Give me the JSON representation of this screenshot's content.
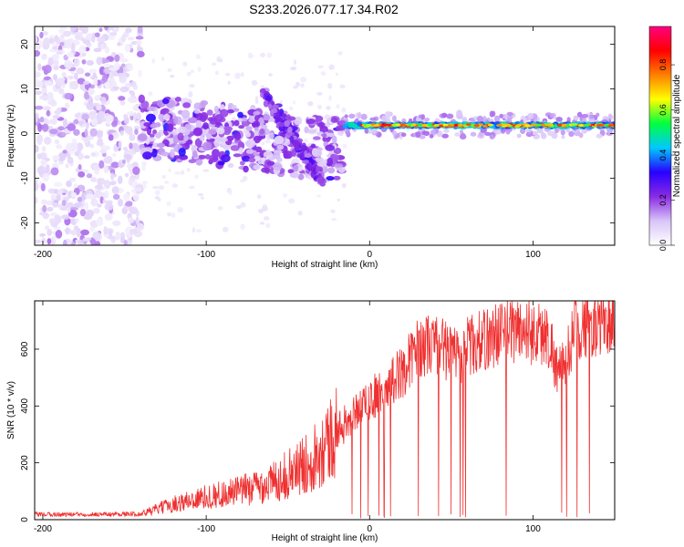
{
  "title": "S233.2026.077.17.34.R02",
  "chart_data": [
    {
      "type": "heatmap",
      "title": "S233.2026.077.17.34.R02",
      "xlabel": "Height of straight line (km)",
      "ylabel": "Frequency (Hz)",
      "xlim": [
        -205,
        150
      ],
      "ylim": [
        -25,
        24
      ],
      "xticks": [
        -200,
        -100,
        0,
        100
      ],
      "yticks": [
        -20,
        -10,
        0,
        10,
        20
      ],
      "colorbar": {
        "label": "Normalized spectral amplitude",
        "range": [
          0.0,
          0.97
        ],
        "ticks": [
          0.0,
          0.2,
          0.4,
          0.6,
          0.8
        ],
        "colormap": [
          "#ffffff",
          "#d8c4f8",
          "#8a2be2",
          "#2800ff",
          "#00c8ff",
          "#00ff40",
          "#ffff00",
          "#ff8000",
          "#ff0000",
          "#ff0080"
        ]
      },
      "features": [
        {
          "name": "noise-region",
          "x": [
            -205,
            -140
          ],
          "y": [
            -25,
            24
          ],
          "amplitude": 0.1
        },
        {
          "name": "scattered-signal",
          "x": [
            -140,
            -15
          ],
          "y_center_start": 2,
          "y_center_end": -4,
          "amplitude": 0.25
        },
        {
          "name": "diagonal-branch",
          "x": [
            -65,
            -30
          ],
          "y": [
            9,
            -10
          ],
          "amplitude": 0.2
        },
        {
          "name": "carrier-line",
          "x": [
            -15,
            150
          ],
          "y": [
            1.5,
            2.2
          ],
          "amplitude": 0.85
        }
      ]
    },
    {
      "type": "line",
      "xlabel": "Height of straight line (km)",
      "ylabel": "SNR (10 * v/v)",
      "xlim": [
        -205,
        150
      ],
      "ylim": [
        0,
        770
      ],
      "xticks": [
        -200,
        -100,
        0,
        100
      ],
      "yticks": [
        0,
        200,
        400,
        600
      ],
      "line_color": "#f03030",
      "trend": {
        "x": [
          -205,
          -140,
          -120,
          -100,
          -80,
          -60,
          -40,
          -25,
          -10,
          0,
          10,
          20,
          30,
          40,
          55,
          60,
          70,
          80,
          90,
          100,
          110,
          115,
          120,
          125,
          135,
          150
        ],
        "y": [
          18,
          20,
          55,
          80,
          100,
          130,
          190,
          280,
          370,
          420,
          470,
          520,
          610,
          620,
          570,
          610,
          630,
          660,
          670,
          660,
          640,
          520,
          540,
          680,
          690,
          700
        ]
      }
    }
  ]
}
